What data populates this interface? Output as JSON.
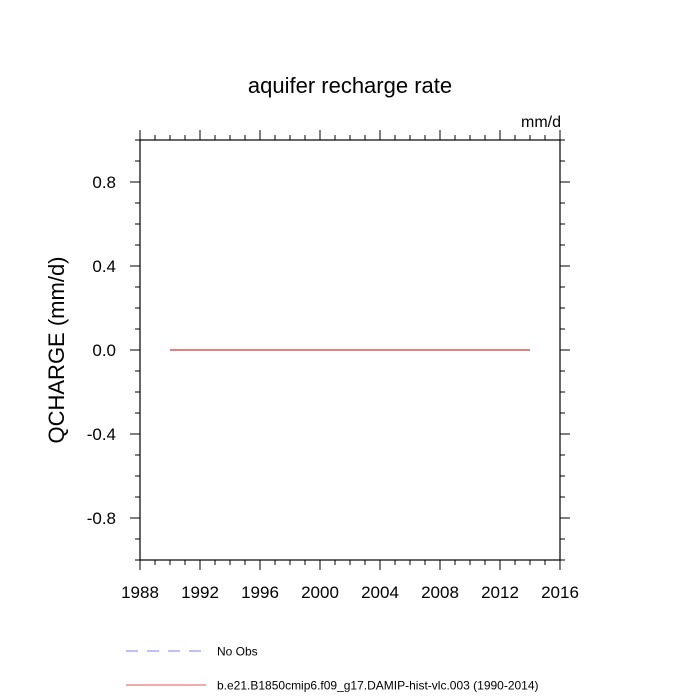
{
  "chart_data": {
    "type": "line",
    "title": "aquifer recharge rate",
    "units": "mm/d",
    "ylabel": "QCHARGE  (mm/d)",
    "xlabel": "",
    "xlim": [
      1988,
      2016
    ],
    "ylim": [
      -1.0,
      1.0
    ],
    "x_ticks": [
      1988,
      1992,
      1996,
      2000,
      2004,
      2008,
      2012,
      2016
    ],
    "x_tick_labels": [
      "1988",
      "1992",
      "1996",
      "2000",
      "2004",
      "2008",
      "2012",
      "2016"
    ],
    "y_ticks": [
      -0.8,
      -0.4,
      0.0,
      0.4,
      0.8
    ],
    "y_tick_labels": [
      "-0.8",
      "-0.4",
      "0.0",
      "0.4",
      "0.8"
    ],
    "grid": false,
    "legend_placement": "bottom-left, below plot",
    "series": [
      {
        "name": "No Obs",
        "style": "dashed",
        "color": "#8080ff",
        "x": [],
        "y": []
      },
      {
        "name": "b.e21.B1850cmip6.f09_g17.DAMIP-hist-vlc.003 (1990-2014)",
        "style": "solid",
        "color": "#e05555",
        "x": [
          1990,
          2014
        ],
        "y": [
          0.0,
          0.0
        ]
      }
    ]
  }
}
